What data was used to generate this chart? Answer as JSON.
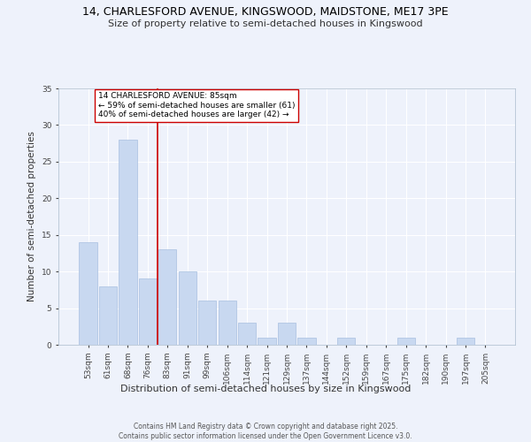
{
  "title1": "14, CHARLESFORD AVENUE, KINGSWOOD, MAIDSTONE, ME17 3PE",
  "title2": "Size of property relative to semi-detached houses in Kingswood",
  "xlabel": "Distribution of semi-detached houses by size in Kingswood",
  "ylabel": "Number of semi-detached properties",
  "categories": [
    "53sqm",
    "61sqm",
    "68sqm",
    "76sqm",
    "83sqm",
    "91sqm",
    "99sqm",
    "106sqm",
    "114sqm",
    "121sqm",
    "129sqm",
    "137sqm",
    "144sqm",
    "152sqm",
    "159sqm",
    "167sqm",
    "175sqm",
    "182sqm",
    "190sqm",
    "197sqm",
    "205sqm"
  ],
  "values": [
    14,
    8,
    28,
    9,
    13,
    10,
    6,
    6,
    3,
    1,
    3,
    1,
    0,
    1,
    0,
    0,
    1,
    0,
    0,
    1,
    0
  ],
  "bar_color": "#c8d8f0",
  "bar_edge_color": "#a8c0e0",
  "background_color": "#eef2fb",
  "grid_color": "#ffffff",
  "vline_index": 4,
  "vline_color": "#cc0000",
  "annotation_title": "14 CHARLESFORD AVENUE: 85sqm",
  "annotation_line1": "← 59% of semi-detached houses are smaller (61)",
  "annotation_line2": "40% of semi-detached houses are larger (42) →",
  "ylim": [
    0,
    35
  ],
  "yticks": [
    0,
    5,
    10,
    15,
    20,
    25,
    30,
    35
  ],
  "footer1": "Contains HM Land Registry data © Crown copyright and database right 2025.",
  "footer2": "Contains public sector information licensed under the Open Government Licence v3.0."
}
